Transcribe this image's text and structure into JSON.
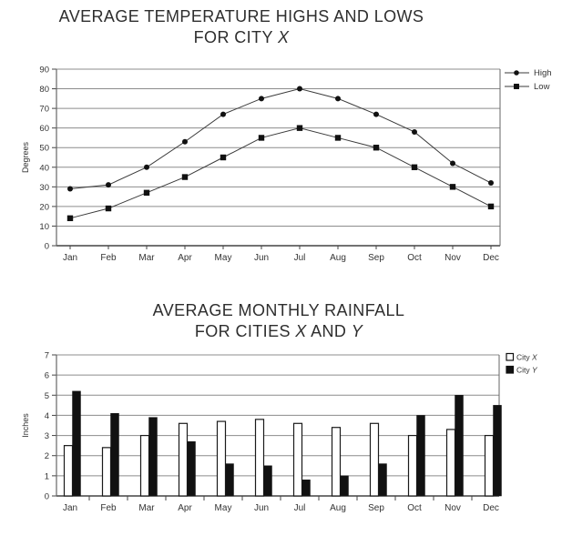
{
  "temperature_chart": {
    "title_line1": "AVERAGE TEMPERATURE HIGHS AND LOWS",
    "title_line2_prefix": "FOR CITY ",
    "title_line2_italic": "X",
    "ylabel": "Degrees",
    "legend": {
      "high_label": "High",
      "low_label": "Low",
      "high_marker": "circle",
      "low_marker": "square"
    }
  },
  "rainfall_chart": {
    "title_line1": "AVERAGE MONTHLY RAINFALL",
    "title_line2_prefix": "FOR CITIES ",
    "title_line2_italic_x": "X",
    "title_line2_mid": " AND ",
    "title_line2_italic_y": "Y",
    "ylabel": "Inches",
    "legend": {
      "items": [
        {
          "prefix": "City ",
          "italic": "X",
          "swatch_fill": "#ffffff"
        },
        {
          "prefix": "City ",
          "italic": "Y",
          "swatch_fill": "#111111"
        }
      ]
    }
  },
  "colors": {
    "grid": "#8c8c8c",
    "axis": "#444444",
    "frame": "#666666",
    "data_line": "#3a3a3a",
    "marker": "#111111",
    "bar_black": "#111111",
    "bar_white": "#ffffff",
    "text": "#333333"
  },
  "chart_data": [
    {
      "type": "line",
      "title": "AVERAGE TEMPERATURE HIGHS AND LOWS FOR CITY X",
      "ylabel": "Degrees",
      "xlabel": "",
      "categories": [
        "Jan",
        "Feb",
        "Mar",
        "Apr",
        "May",
        "Jun",
        "Jul",
        "Aug",
        "Sep",
        "Oct",
        "Nov",
        "Dec"
      ],
      "ylim": [
        0,
        90
      ],
      "yticks": [
        0,
        10,
        20,
        30,
        40,
        50,
        60,
        70,
        80,
        90
      ],
      "grid": "horizontal",
      "legend_position": "top-right",
      "series": [
        {
          "name": "High",
          "marker": "circle",
          "values": [
            29,
            31,
            40,
            53,
            67,
            75,
            80,
            75,
            67,
            58,
            42,
            32
          ]
        },
        {
          "name": "Low",
          "marker": "square",
          "values": [
            14,
            19,
            27,
            35,
            45,
            55,
            60,
            55,
            50,
            40,
            30,
            20
          ]
        }
      ]
    },
    {
      "type": "bar",
      "title": "AVERAGE MONTHLY RAINFALL FOR CITIES X AND Y",
      "ylabel": "Inches",
      "xlabel": "",
      "categories": [
        "Jan",
        "Feb",
        "Mar",
        "Apr",
        "May",
        "Jun",
        "Jul",
        "Aug",
        "Sep",
        "Oct",
        "Nov",
        "Dec"
      ],
      "ylim": [
        0,
        7
      ],
      "yticks": [
        0,
        1,
        2,
        3,
        4,
        5,
        6,
        7
      ],
      "grid": "horizontal",
      "legend_position": "top-right",
      "series": [
        {
          "name": "City X",
          "fill": "#ffffff",
          "values": [
            2.5,
            2.4,
            3.0,
            3.6,
            3.7,
            3.8,
            3.6,
            3.4,
            3.6,
            3.0,
            3.3,
            3.0
          ]
        },
        {
          "name": "City Y",
          "fill": "#111111",
          "values": [
            5.2,
            4.1,
            3.9,
            2.7,
            1.6,
            1.5,
            0.8,
            1.0,
            1.6,
            4.0,
            5.0,
            4.5
          ]
        }
      ]
    }
  ]
}
